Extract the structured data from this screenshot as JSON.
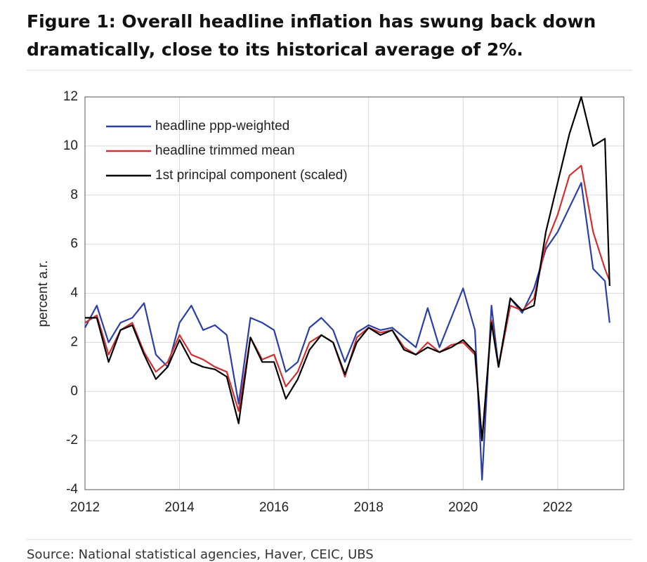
{
  "chart_data": {
    "type": "line",
    "title": "Figure 1: Overall headline inflation has swung back down",
    "subtitle": "dramatically, close to its historical average of 2%.",
    "y_label": "percent a.r.",
    "source": "Source: National statistical agencies, Haver, CEIC, UBS",
    "x": [
      2012.0,
      2012.25,
      2012.5,
      2012.75,
      2013.0,
      2013.25,
      2013.5,
      2013.75,
      2014.0,
      2014.25,
      2014.5,
      2014.75,
      2015.0,
      2015.25,
      2015.5,
      2015.75,
      2016.0,
      2016.25,
      2016.5,
      2016.75,
      2017.0,
      2017.25,
      2017.5,
      2017.75,
      2018.0,
      2018.25,
      2018.5,
      2018.75,
      2019.0,
      2019.25,
      2019.5,
      2019.75,
      2020.0,
      2020.25,
      2020.4,
      2020.6,
      2020.75,
      2021.0,
      2021.25,
      2021.5,
      2021.75,
      2022.0,
      2022.25,
      2022.5,
      2022.75,
      2023.0,
      2023.1
    ],
    "series": [
      {
        "name": "headline ppp-weighted",
        "color": "#2b3fa8",
        "values": [
          2.6,
          3.5,
          2.0,
          2.8,
          3.0,
          3.6,
          1.5,
          1.0,
          2.8,
          3.5,
          2.5,
          2.7,
          2.3,
          -0.5,
          3.0,
          2.8,
          2.5,
          0.8,
          1.2,
          2.6,
          3.0,
          2.5,
          1.2,
          2.4,
          2.7,
          2.5,
          2.6,
          2.2,
          1.8,
          3.4,
          1.8,
          3.0,
          4.2,
          2.5,
          -3.6,
          3.5,
          1.0,
          3.8,
          3.2,
          4.2,
          5.8,
          6.5,
          7.5,
          8.5,
          5.0,
          4.5,
          2.8
        ]
      },
      {
        "name": "headline trimmed mean",
        "color": "#d03030",
        "values": [
          2.8,
          3.1,
          1.5,
          2.5,
          2.8,
          1.6,
          0.8,
          1.2,
          2.3,
          1.5,
          1.3,
          1.0,
          0.8,
          -0.8,
          2.2,
          1.3,
          1.5,
          0.2,
          0.8,
          2.0,
          2.3,
          2.0,
          0.6,
          2.2,
          2.6,
          2.4,
          2.5,
          1.8,
          1.5,
          2.0,
          1.6,
          1.9,
          2.0,
          1.5,
          -2.0,
          2.9,
          1.0,
          3.5,
          3.3,
          3.8,
          6.0,
          7.2,
          8.8,
          9.2,
          6.5,
          5.0,
          4.5
        ]
      },
      {
        "name": "1st principal component (scaled)",
        "color": "#000000",
        "values": [
          3.0,
          3.0,
          1.2,
          2.5,
          2.7,
          1.5,
          0.5,
          1.0,
          2.1,
          1.2,
          1.0,
          0.9,
          0.6,
          -1.3,
          2.2,
          1.2,
          1.2,
          -0.3,
          0.5,
          1.7,
          2.3,
          2.0,
          0.7,
          2.0,
          2.6,
          2.3,
          2.5,
          1.7,
          1.5,
          1.8,
          1.6,
          1.8,
          2.1,
          1.6,
          -2.0,
          2.8,
          1.0,
          3.8,
          3.3,
          3.5,
          6.5,
          8.5,
          10.5,
          12.0,
          10.0,
          10.3,
          4.3
        ]
      }
    ],
    "xlim": [
      2012,
      2023.4
    ],
    "xticks": [
      2012,
      2014,
      2016,
      2018,
      2020,
      2022
    ],
    "ylim": [
      -4,
      12
    ],
    "yticks": [
      -4,
      -2,
      0,
      2,
      4,
      6,
      8,
      10,
      12
    ],
    "grid": true,
    "legend": "upper left"
  }
}
